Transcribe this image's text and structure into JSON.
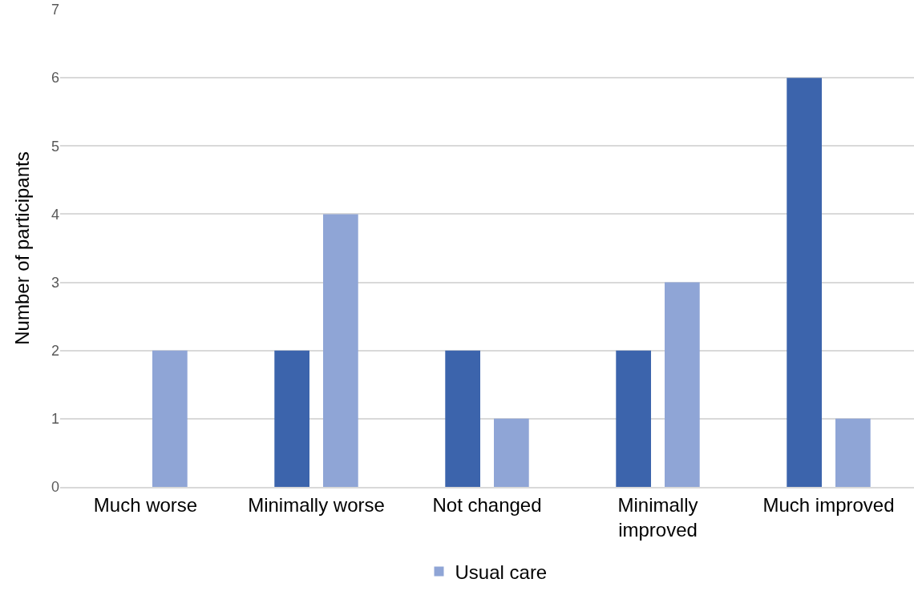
{
  "chart_data": {
    "type": "bar",
    "ylabel": "Number of participants",
    "categories": [
      "Much worse",
      "Minimally worse",
      "Not changed",
      "Minimally improved",
      "Much improved"
    ],
    "series": [
      {
        "color": "#3c64ac",
        "values": [
          0,
          2,
          2,
          2,
          6
        ]
      },
      {
        "name": "Usual care",
        "color": "#8fa5d6",
        "values": [
          2,
          4,
          1,
          3,
          1
        ]
      }
    ],
    "ylim": [
      0,
      7
    ],
    "yticks": [
      0,
      1,
      2,
      3,
      4,
      5,
      6,
      7
    ],
    "grid": "y",
    "legend": "bottom"
  }
}
